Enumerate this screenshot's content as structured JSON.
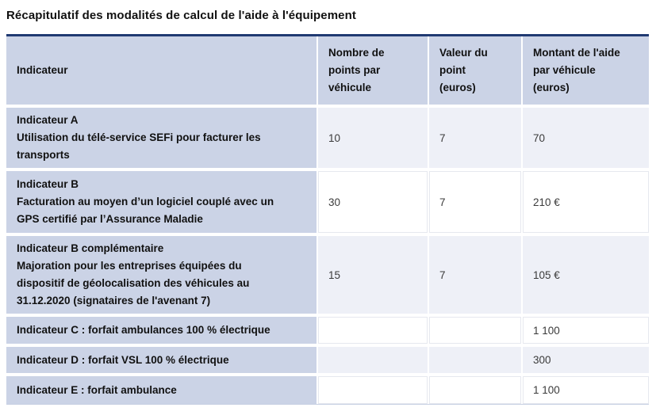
{
  "theme": {
    "accent": "#203a72",
    "header-bg": "#cbd3e6",
    "tint-bg": "#eef0f7",
    "cell-border": "#e6e8ef",
    "bottom-border": "#c6cfe2",
    "label-text": "#111111",
    "value-text": "#3b3b3b"
  },
  "page": {
    "title": "Récapitulatif des modalités de calcul de l'aide à l'équipement"
  },
  "table": {
    "header": {
      "indicateur": "Indicateur",
      "points": [
        "Nombre de",
        "points par",
        "véhicule"
      ],
      "valeur": [
        "Valeur du",
        "point",
        "(euros)"
      ],
      "montant": [
        "Montant de l'aide",
        "par véhicule",
        "(euros)"
      ]
    },
    "rows": [
      {
        "name": "Indicateur A",
        "desc": [
          "Utilisation du télé-service SEFi pour facturer les",
          "transports"
        ],
        "points": "10",
        "point_value": "7",
        "amount": "70"
      },
      {
        "name": "Indicateur B",
        "desc": [
          "Facturation au moyen d’un logiciel couplé avec un",
          "GPS certifié par l’Assurance Maladie"
        ],
        "points": "30",
        "point_value": "7",
        "amount": "210 €"
      },
      {
        "name": "Indicateur B complémentaire",
        "desc": [
          "Majoration pour les entreprises équipées du",
          "dispositif de géolocalisation des véhicules au",
          "31.12.2020 (signataires de l'avenant 7)"
        ],
        "points": "15",
        "point_value": "7",
        "amount": "105 €"
      },
      {
        "name": "Indicateur C : forfait ambulances 100 % électrique",
        "desc": [],
        "points": "",
        "point_value": "",
        "amount": "1 100"
      },
      {
        "name": "Indicateur D : forfait VSL 100 % électrique",
        "desc": [],
        "points": "",
        "point_value": "",
        "amount": "300"
      },
      {
        "name": "Indicateur E : forfait ambulance",
        "desc": [],
        "points": "",
        "point_value": "",
        "amount": "1 100"
      }
    ]
  }
}
